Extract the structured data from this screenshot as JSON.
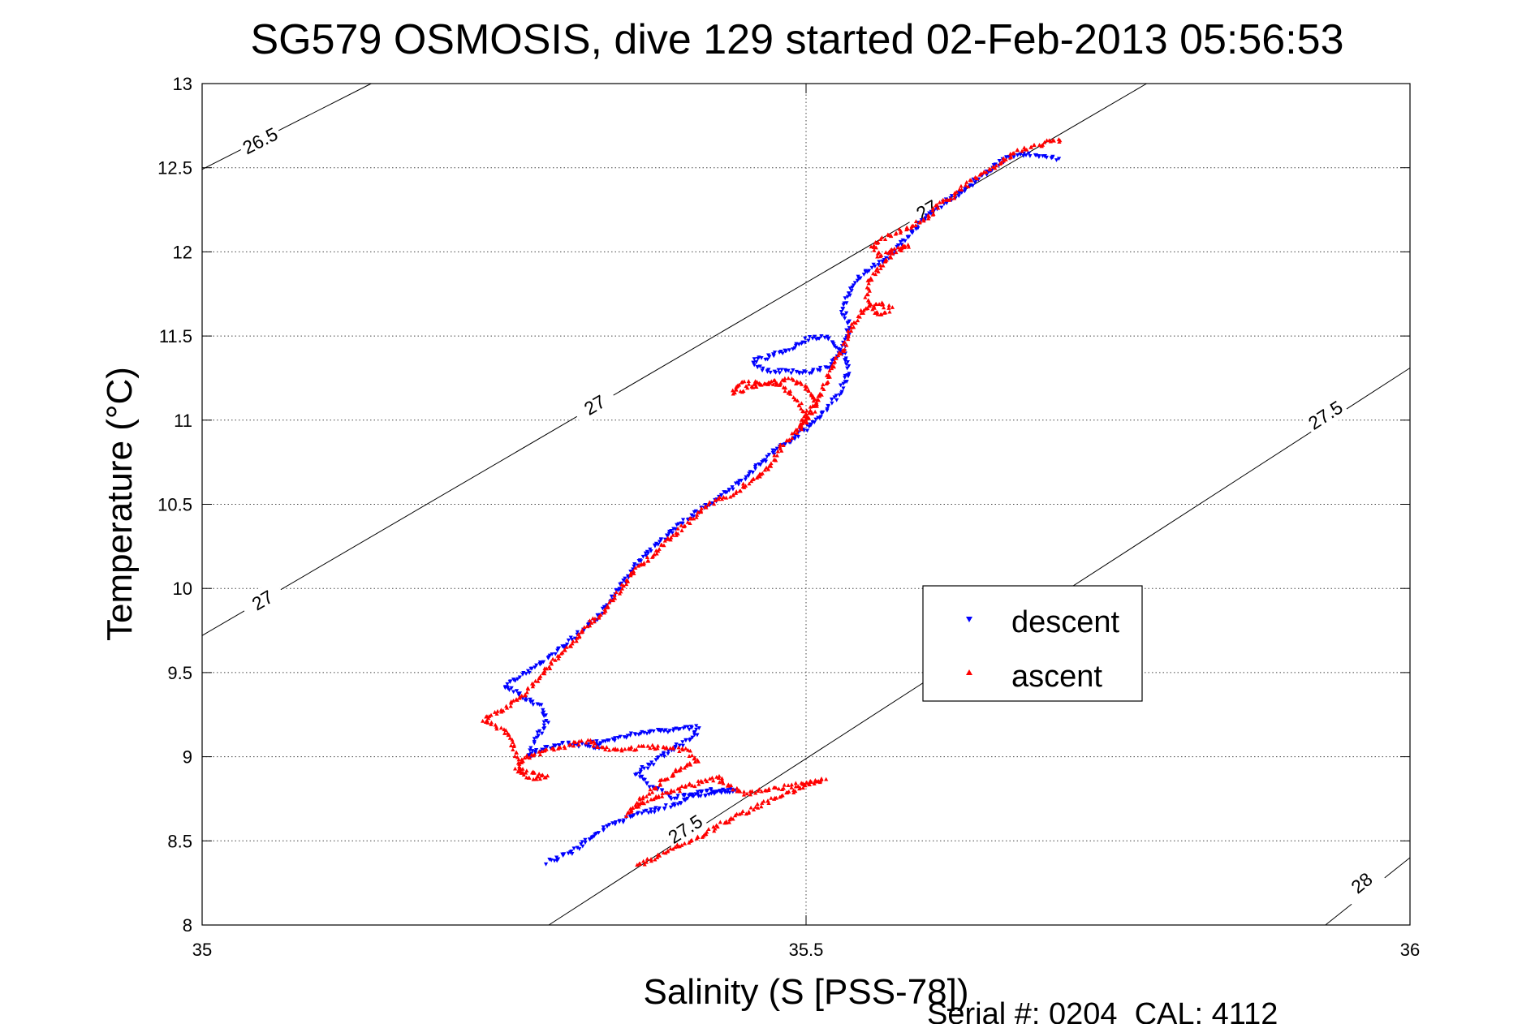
{
  "chart_data": {
    "type": "scatter",
    "title": "SG579 OSMOSIS, dive 129 started 02-Feb-2013 05:56:53",
    "xlabel": "Salinity (S [PSS-78])",
    "ylabel": "Temperature (°C)",
    "xlim": [
      35,
      36
    ],
    "ylim": [
      8,
      13
    ],
    "x_ticks": [
      "35",
      "35.5",
      "36"
    ],
    "y_ticks": [
      "8",
      "8.5",
      "9",
      "9.5",
      "10",
      "10.5",
      "11",
      "11.5",
      "12",
      "12.5",
      "13"
    ],
    "grid": true,
    "legend_position": "inside-right",
    "footer": "Serial #: 0204  CAL: 4112",
    "series": [
      {
        "name": "descent",
        "marker": "down-triangle",
        "color": "#0000ff",
        "path": [
          [
            35.286,
            8.37
          ],
          [
            35.302,
            8.42
          ],
          [
            35.318,
            8.5
          ],
          [
            35.335,
            8.58
          ],
          [
            35.352,
            8.64
          ],
          [
            35.372,
            8.68
          ],
          [
            35.39,
            8.71
          ],
          [
            35.405,
            8.77
          ],
          [
            35.42,
            8.8
          ],
          [
            35.44,
            8.8
          ],
          [
            35.418,
            8.78
          ],
          [
            35.39,
            8.76
          ],
          [
            35.372,
            8.82
          ],
          [
            35.36,
            8.9
          ],
          [
            35.375,
            8.98
          ],
          [
            35.392,
            9.06
          ],
          [
            35.408,
            9.12
          ],
          [
            35.41,
            9.18
          ],
          [
            35.39,
            9.16
          ],
          [
            35.36,
            9.14
          ],
          [
            35.34,
            9.1
          ],
          [
            35.325,
            9.08
          ],
          [
            35.33,
            9.06
          ],
          [
            35.3,
            9.08
          ],
          [
            35.278,
            9.04
          ],
          [
            35.27,
            9.0
          ],
          [
            35.275,
            9.1
          ],
          [
            35.285,
            9.2
          ],
          [
            35.28,
            9.3
          ],
          [
            35.265,
            9.36
          ],
          [
            35.25,
            9.42
          ],
          [
            35.27,
            9.5
          ],
          [
            35.285,
            9.58
          ],
          [
            35.3,
            9.66
          ],
          [
            35.315,
            9.75
          ],
          [
            35.33,
            9.85
          ],
          [
            35.34,
            9.95
          ],
          [
            35.35,
            10.05
          ],
          [
            35.36,
            10.15
          ],
          [
            35.375,
            10.25
          ],
          [
            35.39,
            10.35
          ],
          [
            35.405,
            10.43
          ],
          [
            35.42,
            10.5
          ],
          [
            35.435,
            10.58
          ],
          [
            35.45,
            10.66
          ],
          [
            35.462,
            10.74
          ],
          [
            35.475,
            10.82
          ],
          [
            35.49,
            10.9
          ],
          [
            35.505,
            10.98
          ],
          [
            35.515,
            11.06
          ],
          [
            35.525,
            11.14
          ],
          [
            35.532,
            11.22
          ],
          [
            35.535,
            11.3
          ],
          [
            35.532,
            11.38
          ],
          [
            35.525,
            11.45
          ],
          [
            35.515,
            11.5
          ],
          [
            35.5,
            11.48
          ],
          [
            35.485,
            11.42
          ],
          [
            35.47,
            11.38
          ],
          [
            35.455,
            11.35
          ],
          [
            35.465,
            11.3
          ],
          [
            35.5,
            11.28
          ],
          [
            35.52,
            11.32
          ],
          [
            35.53,
            11.42
          ],
          [
            35.535,
            11.5
          ],
          [
            35.535,
            11.58
          ],
          [
            35.53,
            11.66
          ],
          [
            35.535,
            11.74
          ],
          [
            35.54,
            11.82
          ],
          [
            35.55,
            11.88
          ],
          [
            35.562,
            11.94
          ],
          [
            35.575,
            12.02
          ],
          [
            35.585,
            12.1
          ],
          [
            35.595,
            12.18
          ],
          [
            35.605,
            12.24
          ],
          [
            35.61,
            12.27
          ],
          [
            35.625,
            12.34
          ],
          [
            35.64,
            12.42
          ],
          [
            35.655,
            12.5
          ],
          [
            35.665,
            12.56
          ],
          [
            35.68,
            12.58
          ],
          [
            35.695,
            12.57
          ],
          [
            35.71,
            12.55
          ]
        ]
      },
      {
        "name": "ascent",
        "marker": "up-triangle",
        "color": "#ff0000",
        "path": [
          [
            35.36,
            8.35
          ],
          [
            35.375,
            8.4
          ],
          [
            35.39,
            8.45
          ],
          [
            35.41,
            8.52
          ],
          [
            35.43,
            8.6
          ],
          [
            35.45,
            8.67
          ],
          [
            35.47,
            8.74
          ],
          [
            35.49,
            8.8
          ],
          [
            35.505,
            8.85
          ],
          [
            35.515,
            8.86
          ],
          [
            35.49,
            8.83
          ],
          [
            35.45,
            8.78
          ],
          [
            35.43,
            8.85
          ],
          [
            35.43,
            8.88
          ],
          [
            35.41,
            8.84
          ],
          [
            35.38,
            8.77
          ],
          [
            35.358,
            8.7
          ],
          [
            35.352,
            8.65
          ],
          [
            35.36,
            8.72
          ],
          [
            35.375,
            8.82
          ],
          [
            35.39,
            8.9
          ],
          [
            35.41,
            8.98
          ],
          [
            35.4,
            9.04
          ],
          [
            35.37,
            9.06
          ],
          [
            35.35,
            9.04
          ],
          [
            35.33,
            9.05
          ],
          [
            35.32,
            9.09
          ],
          [
            35.29,
            9.05
          ],
          [
            35.27,
            9.0
          ],
          [
            35.26,
            8.93
          ],
          [
            35.27,
            8.87
          ],
          [
            35.285,
            8.88
          ],
          [
            35.265,
            8.92
          ],
          [
            35.26,
            9.02
          ],
          [
            35.255,
            9.1
          ],
          [
            35.25,
            9.16
          ],
          [
            35.232,
            9.22
          ],
          [
            35.25,
            9.28
          ],
          [
            35.268,
            9.38
          ],
          [
            35.28,
            9.48
          ],
          [
            35.29,
            9.56
          ],
          [
            35.305,
            9.66
          ],
          [
            35.32,
            9.78
          ],
          [
            35.335,
            9.88
          ],
          [
            35.345,
            9.98
          ],
          [
            35.355,
            10.08
          ],
          [
            35.37,
            10.18
          ],
          [
            35.385,
            10.28
          ],
          [
            35.4,
            10.38
          ],
          [
            35.412,
            10.46
          ],
          [
            35.425,
            10.52
          ],
          [
            35.44,
            10.56
          ],
          [
            35.455,
            10.64
          ],
          [
            35.47,
            10.72
          ],
          [
            35.48,
            10.85
          ],
          [
            35.492,
            10.93
          ],
          [
            35.505,
            11.05
          ],
          [
            35.51,
            11.1
          ],
          [
            35.505,
            11.15
          ],
          [
            35.5,
            11.2
          ],
          [
            35.485,
            11.24
          ],
          [
            35.47,
            11.22
          ],
          [
            35.455,
            11.2
          ],
          [
            35.44,
            11.16
          ],
          [
            35.445,
            11.22
          ],
          [
            35.475,
            11.22
          ],
          [
            35.49,
            11.14
          ],
          [
            35.498,
            11.06
          ],
          [
            35.5,
            11.0
          ],
          [
            35.495,
            10.95
          ],
          [
            35.5,
            11.03
          ],
          [
            35.507,
            11.1
          ],
          [
            35.515,
            11.2
          ],
          [
            35.52,
            11.28
          ],
          [
            35.525,
            11.36
          ],
          [
            35.53,
            11.42
          ],
          [
            35.535,
            11.5
          ],
          [
            35.54,
            11.58
          ],
          [
            35.548,
            11.66
          ],
          [
            35.56,
            11.7
          ],
          [
            35.57,
            11.66
          ],
          [
            35.56,
            11.62
          ],
          [
            35.55,
            11.72
          ],
          [
            35.552,
            11.82
          ],
          [
            35.56,
            11.9
          ],
          [
            35.57,
            11.98
          ],
          [
            35.585,
            12.04
          ],
          [
            35.575,
            12.02
          ],
          [
            35.56,
            11.98
          ],
          [
            35.555,
            12.04
          ],
          [
            35.57,
            12.1
          ],
          [
            35.585,
            12.14
          ],
          [
            35.6,
            12.2
          ],
          [
            35.61,
            12.28
          ],
          [
            35.62,
            12.32
          ],
          [
            35.63,
            12.38
          ],
          [
            35.64,
            12.44
          ],
          [
            35.655,
            12.5
          ],
          [
            35.665,
            12.55
          ],
          [
            35.675,
            12.6
          ],
          [
            35.69,
            12.63
          ],
          [
            35.7,
            12.65
          ],
          [
            35.71,
            12.66
          ],
          [
            35.712,
            12.68
          ]
        ]
      }
    ],
    "density_contours": [
      {
        "label": "26.5",
        "points": [
          [
            35.0,
            12.49
          ],
          [
            35.14,
            13.0
          ]
        ],
        "label_positions": [
          [
            35.048,
            12.66
          ]
        ]
      },
      {
        "label": "27",
        "points": [
          [
            35.0,
            9.72
          ],
          [
            35.782,
            13.0
          ]
        ],
        "label_positions": [
          [
            35.05,
            9.93
          ],
          [
            35.325,
            11.09
          ],
          [
            35.6,
            12.25
          ]
        ]
      },
      {
        "label": "27.5",
        "points": [
          [
            35.287,
            8.0
          ],
          [
            36.0,
            11.31
          ]
        ],
        "label_positions": [
          [
            35.4,
            8.57
          ],
          [
            35.93,
            11.03
          ]
        ]
      },
      {
        "label": "28",
        "points": [
          [
            35.93,
            8.0
          ],
          [
            36.0,
            8.4
          ]
        ],
        "label_positions": [
          [
            35.96,
            8.25
          ]
        ]
      }
    ]
  }
}
